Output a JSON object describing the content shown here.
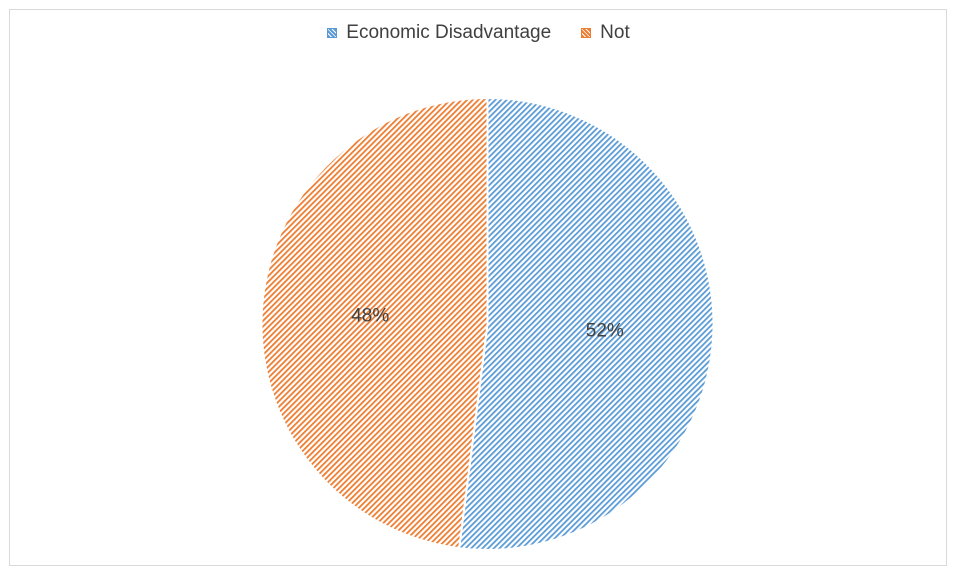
{
  "chart_data": {
    "type": "pie",
    "categories": [
      "Economic Disadvantage",
      "Not"
    ],
    "values": [
      52,
      48
    ],
    "data_labels": [
      "52%",
      "48%"
    ],
    "colors": [
      "#5b9bd5",
      "#ed7d31"
    ],
    "fill_pattern": "diagonal-hatch",
    "legend_position": "top",
    "start_angle_deg": 0,
    "direction": "clockwise"
  }
}
